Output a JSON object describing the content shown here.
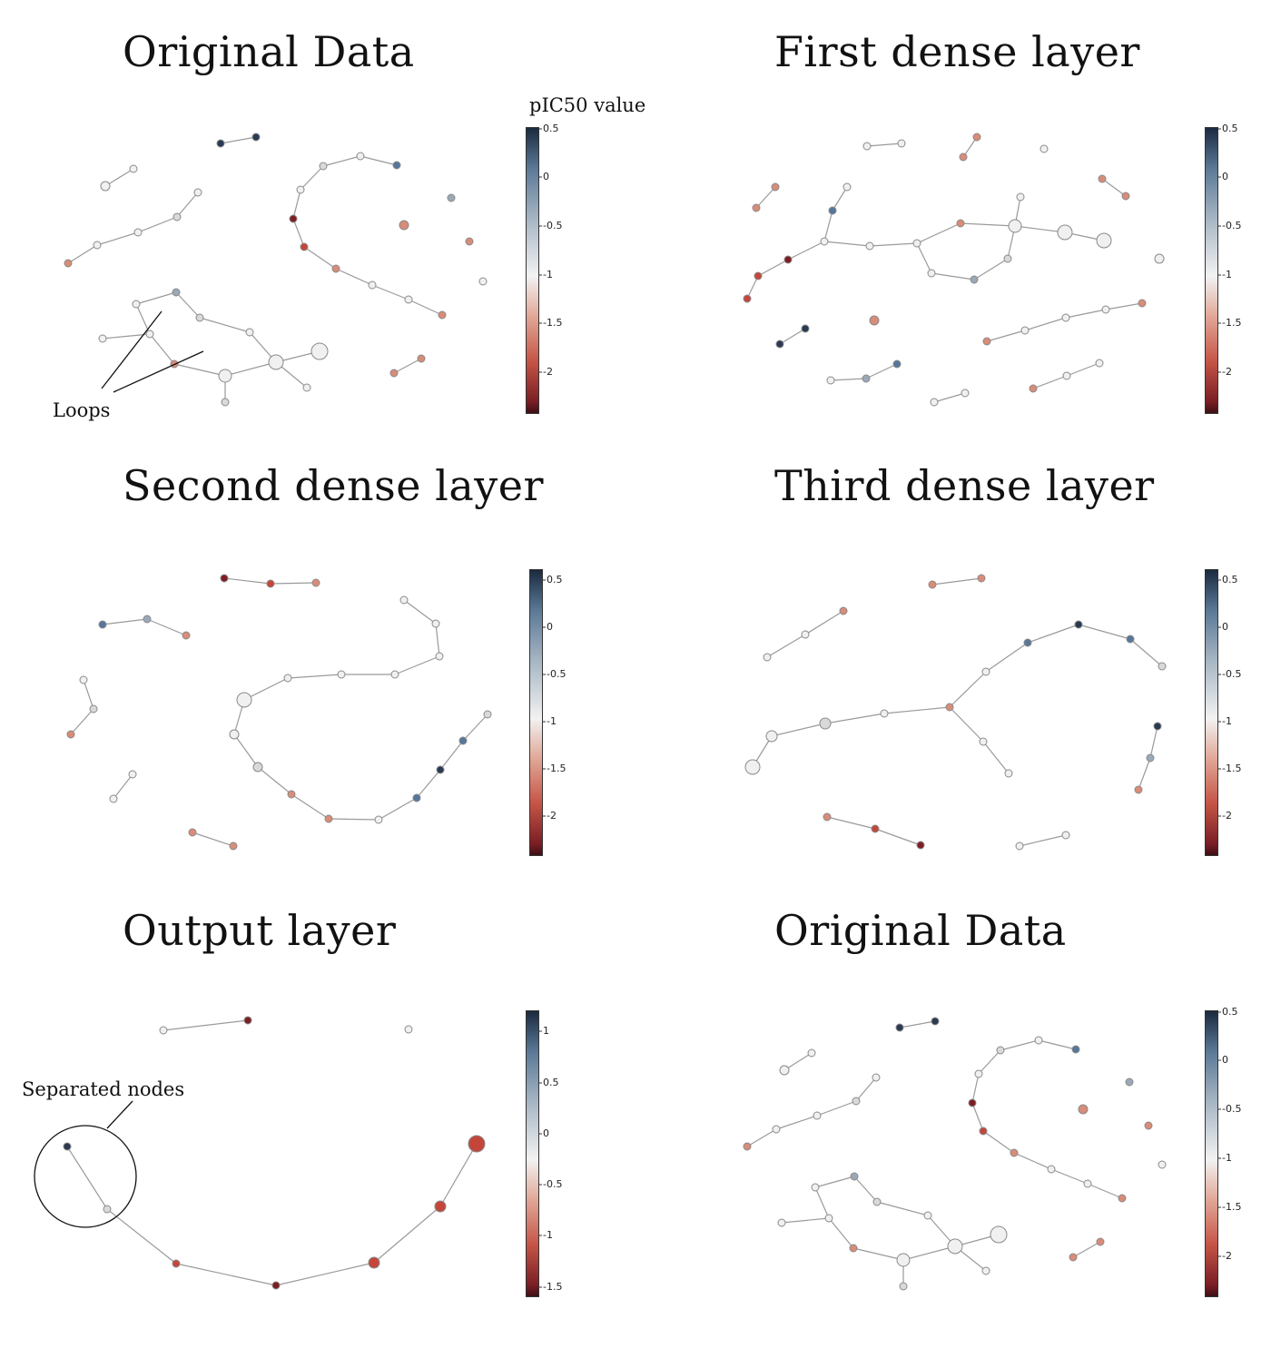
{
  "panels": [
    {
      "title": "Original Data",
      "ticks": [
        "0.5",
        "0",
        "-0.5",
        "-1",
        "-1.5",
        "-2"
      ]
    },
    {
      "title": "First dense layer",
      "ticks": [
        "0.5",
        "0",
        "-0.5",
        "-1",
        "-1.5",
        "-2"
      ]
    },
    {
      "title": "Second dense layer",
      "ticks": [
        "0.5",
        "0",
        "-0.5",
        "-1",
        "-1.5",
        "-2"
      ]
    },
    {
      "title": "Third dense layer",
      "ticks": [
        "0.5",
        "0",
        "-0.5",
        "-1",
        "-1.5",
        "-2"
      ]
    },
    {
      "title": "Output  layer",
      "ticks": [
        "1",
        "0.5",
        "0",
        "-0.5",
        "-1",
        "-1.5"
      ]
    },
    {
      "title": "Original Data",
      "ticks": [
        "0.5",
        "0",
        "-0.5",
        "-1",
        "-1.5",
        "-2"
      ]
    }
  ],
  "colorbar_label": "pIC50 value",
  "annotations": {
    "loops": "Loops",
    "separated": "Separated nodes"
  },
  "colors": {
    "dark": "#2a3a52",
    "blue": "#56779a",
    "grayblue": "#9aa9b8",
    "gray": "#d9d9d9",
    "white": "#f0f0f0",
    "pink": "#d98c78",
    "red": "#c4463b",
    "darkred": "#7e1e24",
    "edge": "#9a9a9a"
  }
}
